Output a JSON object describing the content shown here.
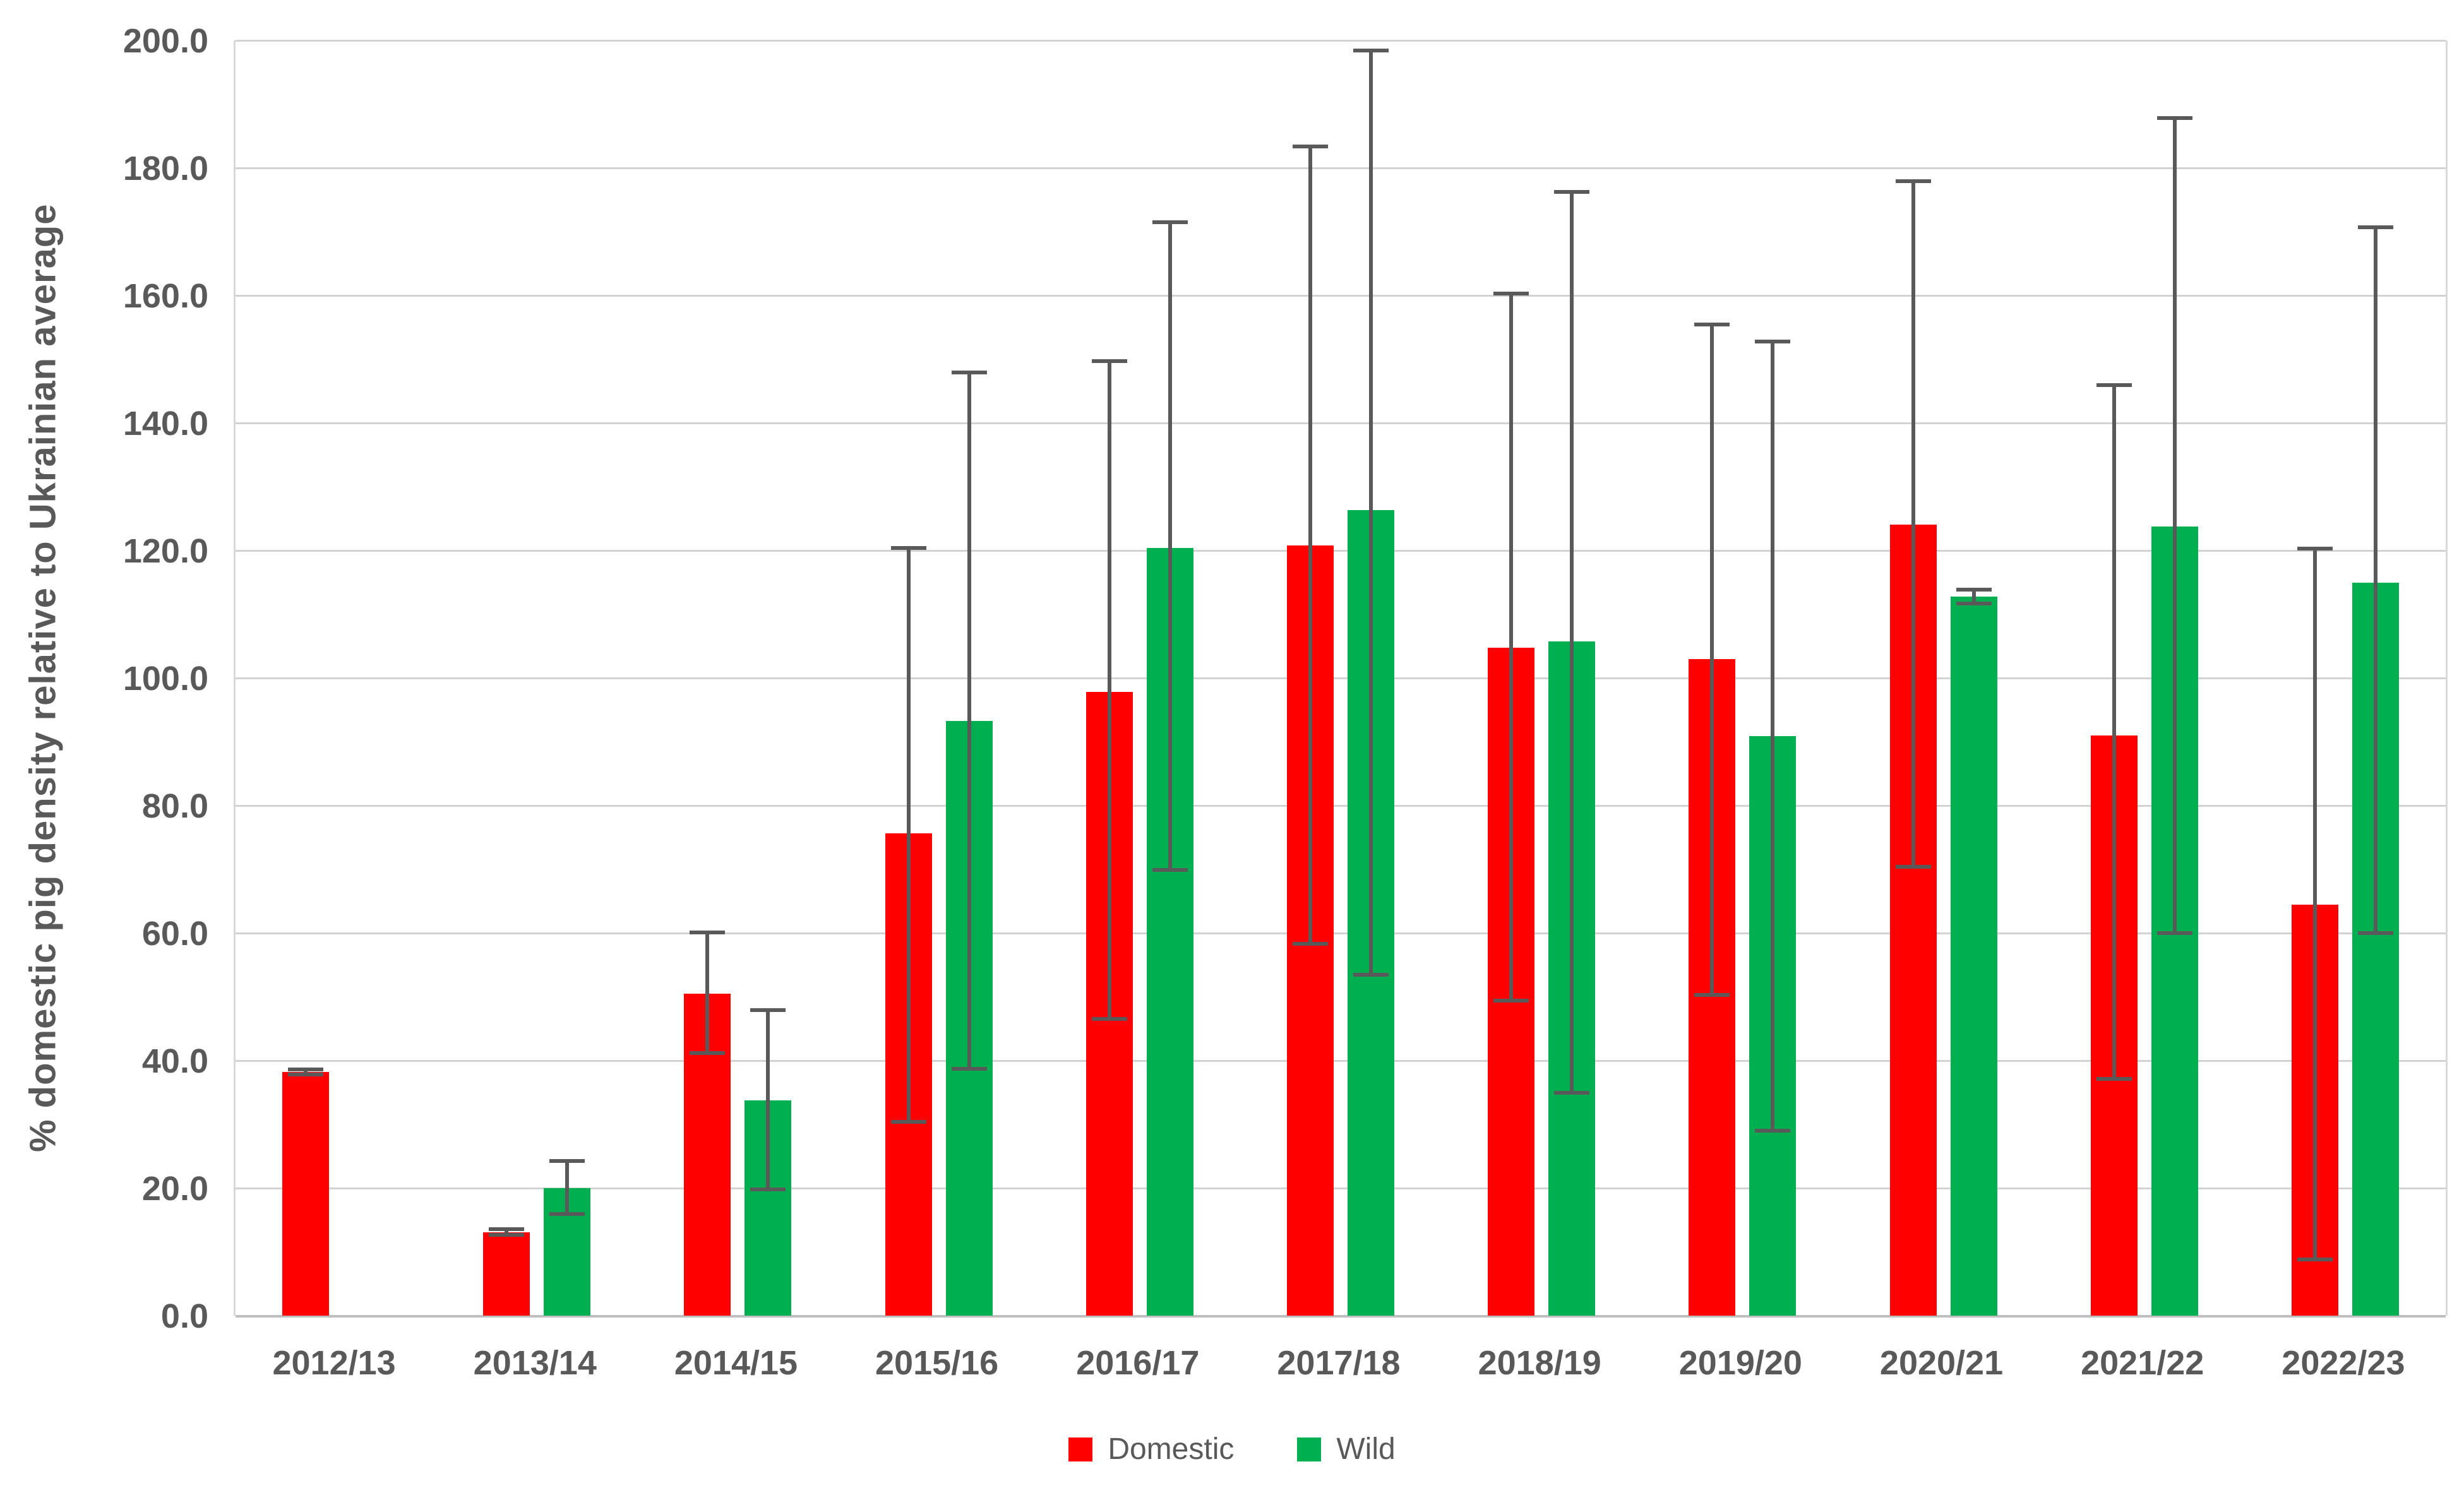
{
  "chart_data": {
    "type": "bar",
    "title": "",
    "xlabel": "",
    "ylabel": "% domestic pig density relative to Ukrainian average",
    "ylim": [
      0,
      200
    ],
    "ytick_step": 20,
    "ytick_decimals": 1,
    "grid": true,
    "legend_position": "bottom",
    "error_bar_color": "#595959",
    "categories": [
      "2012/13",
      "2013/14",
      "2014/15",
      "2015/16",
      "2016/17",
      "2017/18",
      "2018/19",
      "2019/20",
      "2020/21",
      "2021/22",
      "2022/23"
    ],
    "series": [
      {
        "name": "Domestic",
        "color": "#FF0000",
        "values": [
          38.2,
          13.1,
          50.5,
          75.6,
          97.8,
          120.8,
          104.8,
          103.0,
          124.1,
          91.0,
          64.5
        ],
        "ci_low": [
          37.8,
          12.7,
          41.2,
          30.4,
          46.5,
          58.3,
          49.4,
          50.3,
          70.4,
          37.1,
          8.8
        ],
        "ci_high": [
          38.6,
          13.6,
          60.1,
          120.4,
          149.7,
          183.4,
          160.3,
          155.4,
          177.9,
          145.9,
          120.3
        ]
      },
      {
        "name": "Wild",
        "color": "#00B050",
        "values": [
          null,
          20.0,
          33.8,
          93.3,
          120.4,
          126.3,
          105.7,
          90.9,
          112.8,
          123.8,
          115.0
        ],
        "ci_low": [
          null,
          15.9,
          19.8,
          38.7,
          69.9,
          53.5,
          35.0,
          29.0,
          111.7,
          60.0,
          60.0
        ],
        "ci_high": [
          null,
          24.3,
          47.9,
          147.9,
          171.5,
          198.4,
          176.2,
          152.8,
          113.9,
          187.8,
          170.7
        ]
      }
    ]
  },
  "colors": {
    "background": "#FFFFFF",
    "gridline": "#D2D2D2",
    "axis_line": "#BFBFBF",
    "text": "#595959"
  }
}
